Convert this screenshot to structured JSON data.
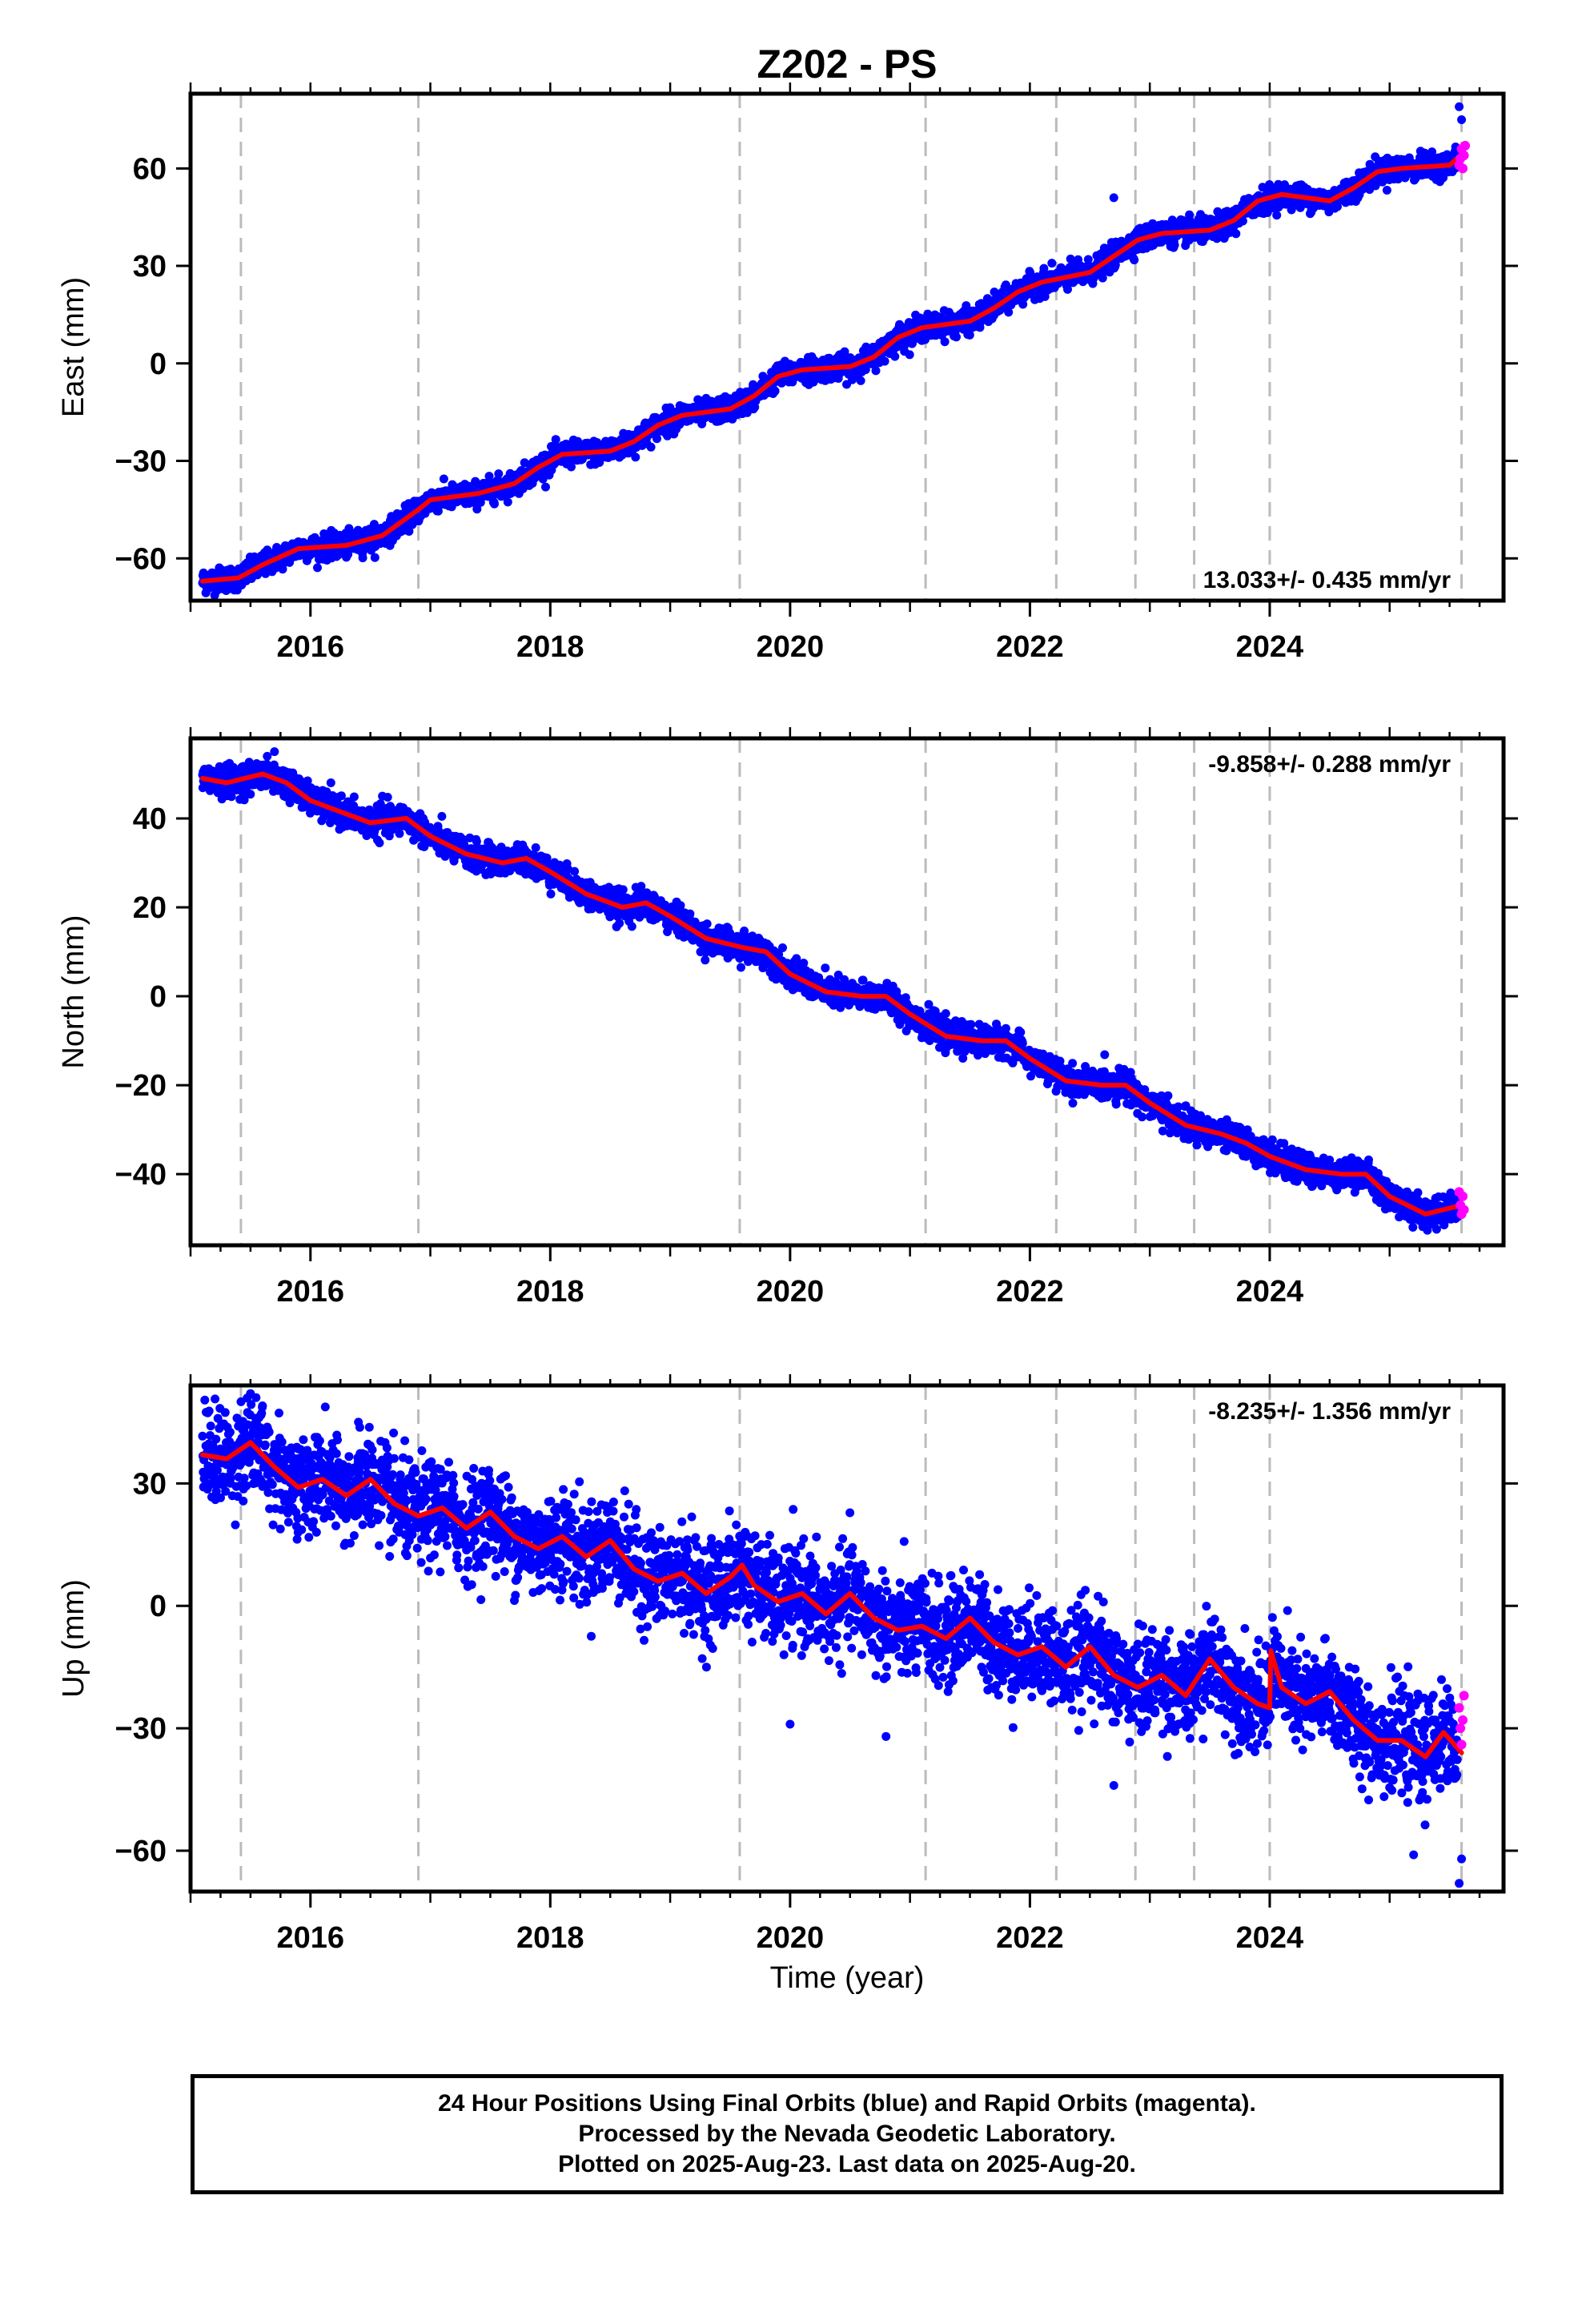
{
  "footer": {
    "line1": "24 Hour Positions Using Final Orbits (blue) and Rapid Orbits (magenta).",
    "line2": "Processed by the Nevada Geodetic Laboratory.",
    "line3": "Plotted on 2025-Aug-23. Last data on 2025-Aug-20."
  },
  "colors": {
    "final": "#0000ff",
    "rapid": "#ff00ff",
    "model": "#ff0000",
    "event_lines": "#bbbbbb"
  },
  "chart_data": [
    {
      "type": "scatter",
      "title": "Z202 - PS",
      "xlabel": "",
      "ylabel": "East (mm)",
      "xlim": [
        2015.0,
        2025.95
      ],
      "ylim": [
        -73,
        83
      ],
      "yticks": [
        -60,
        -30,
        0,
        30,
        60
      ],
      "xticks": [
        2016,
        2018,
        2020,
        2022,
        2024
      ],
      "rate_label": "13.033+/- 0.435 mm/yr",
      "rate_position": "bottom-right",
      "event_lines": [
        2015.42,
        2016.9,
        2019.58,
        2021.13,
        2022.22,
        2022.88,
        2023.37,
        2024.0,
        2025.6
      ],
      "trend": [
        [
          2015.1,
          -67
        ],
        [
          2015.4,
          -66
        ],
        [
          2015.6,
          -62
        ],
        [
          2015.9,
          -57
        ],
        [
          2016.3,
          -56
        ],
        [
          2016.6,
          -53
        ],
        [
          2016.9,
          -45
        ],
        [
          2017.0,
          -42
        ],
        [
          2017.4,
          -40
        ],
        [
          2017.7,
          -37
        ],
        [
          2017.9,
          -32
        ],
        [
          2018.1,
          -28
        ],
        [
          2018.5,
          -27
        ],
        [
          2018.7,
          -24
        ],
        [
          2018.9,
          -19
        ],
        [
          2019.1,
          -16
        ],
        [
          2019.5,
          -14
        ],
        [
          2019.7,
          -10
        ],
        [
          2019.9,
          -4
        ],
        [
          2020.1,
          -2
        ],
        [
          2020.5,
          -1
        ],
        [
          2020.7,
          2
        ],
        [
          2020.9,
          8
        ],
        [
          2021.1,
          11
        ],
        [
          2021.5,
          13
        ],
        [
          2021.7,
          17
        ],
        [
          2021.9,
          22
        ],
        [
          2022.1,
          25
        ],
        [
          2022.5,
          28
        ],
        [
          2022.7,
          33
        ],
        [
          2022.9,
          38
        ],
        [
          2023.1,
          40
        ],
        [
          2023.5,
          41
        ],
        [
          2023.7,
          44
        ],
        [
          2023.9,
          50
        ],
        [
          2024.1,
          52
        ],
        [
          2024.5,
          50
        ],
        [
          2024.7,
          54
        ],
        [
          2024.9,
          59
        ],
        [
          2025.1,
          60
        ],
        [
          2025.5,
          61
        ],
        [
          2025.62,
          65
        ]
      ],
      "scatter_sigma": 1.8,
      "rapid_points": [
        [
          2025.58,
          61
        ],
        [
          2025.59,
          63
        ],
        [
          2025.6,
          66
        ],
        [
          2025.61,
          60
        ],
        [
          2025.62,
          64
        ],
        [
          2025.63,
          67
        ]
      ],
      "outliers": [
        [
          2025.58,
          79
        ],
        [
          2025.6,
          75
        ],
        [
          2022.7,
          51
        ]
      ]
    },
    {
      "type": "scatter",
      "title": "",
      "xlabel": "",
      "ylabel": "North (mm)",
      "xlim": [
        2015.0,
        2025.95
      ],
      "ylim": [
        -56,
        58
      ],
      "yticks": [
        -40,
        -20,
        0,
        20,
        40
      ],
      "xticks": [
        2016,
        2018,
        2020,
        2022,
        2024
      ],
      "rate_label": "-9.858+/- 0.288 mm/yr",
      "rate_position": "top-right",
      "event_lines": [
        2015.42,
        2016.9,
        2019.58,
        2021.13,
        2022.22,
        2022.88,
        2023.37,
        2024.0,
        2025.6
      ],
      "trend": [
        [
          2015.1,
          49
        ],
        [
          2015.3,
          48
        ],
        [
          2015.6,
          50
        ],
        [
          2015.8,
          48
        ],
        [
          2016.0,
          44
        ],
        [
          2016.3,
          41
        ],
        [
          2016.5,
          39
        ],
        [
          2016.8,
          40
        ],
        [
          2017.0,
          36
        ],
        [
          2017.3,
          32
        ],
        [
          2017.6,
          30
        ],
        [
          2017.8,
          31
        ],
        [
          2018.0,
          28
        ],
        [
          2018.3,
          23
        ],
        [
          2018.6,
          20
        ],
        [
          2018.8,
          21
        ],
        [
          2019.0,
          18
        ],
        [
          2019.3,
          13
        ],
        [
          2019.6,
          11
        ],
        [
          2019.8,
          10
        ],
        [
          2020.0,
          5
        ],
        [
          2020.3,
          1
        ],
        [
          2020.6,
          0
        ],
        [
          2020.8,
          0
        ],
        [
          2021.0,
          -4
        ],
        [
          2021.3,
          -9
        ],
        [
          2021.6,
          -10
        ],
        [
          2021.8,
          -10
        ],
        [
          2022.0,
          -14
        ],
        [
          2022.3,
          -19
        ],
        [
          2022.6,
          -20
        ],
        [
          2022.8,
          -20
        ],
        [
          2023.0,
          -24
        ],
        [
          2023.3,
          -29
        ],
        [
          2023.6,
          -31
        ],
        [
          2023.8,
          -33
        ],
        [
          2024.0,
          -36
        ],
        [
          2024.3,
          -39
        ],
        [
          2024.6,
          -40
        ],
        [
          2024.8,
          -40
        ],
        [
          2025.0,
          -45
        ],
        [
          2025.3,
          -49
        ],
        [
          2025.6,
          -47
        ]
      ],
      "scatter_sigma": 1.6,
      "rapid_points": [
        [
          2025.58,
          -44
        ],
        [
          2025.59,
          -47
        ],
        [
          2025.6,
          -49
        ],
        [
          2025.61,
          -45
        ],
        [
          2025.62,
          -48
        ]
      ],
      "outliers": [
        [
          2015.3,
          52
        ],
        [
          2015.7,
          55
        ],
        [
          2016.6,
          45
        ]
      ]
    },
    {
      "type": "scatter",
      "title": "",
      "xlabel": "Time (year)",
      "ylabel": "Up (mm)",
      "xlim": [
        2015.0,
        2025.95
      ],
      "ylim": [
        -70,
        54
      ],
      "yticks": [
        -60,
        -30,
        0,
        30
      ],
      "xticks": [
        2016,
        2018,
        2020,
        2022,
        2024
      ],
      "rate_label": "-8.235+/- 1.356 mm/yr",
      "rate_position": "top-right",
      "event_lines": [
        2015.42,
        2016.9,
        2019.58,
        2021.13,
        2022.22,
        2022.88,
        2023.37,
        2024.0,
        2025.6
      ],
      "trend": [
        [
          2015.1,
          37
        ],
        [
          2015.3,
          36
        ],
        [
          2015.5,
          40
        ],
        [
          2015.7,
          34
        ],
        [
          2015.9,
          29
        ],
        [
          2016.1,
          31
        ],
        [
          2016.3,
          27
        ],
        [
          2016.5,
          31
        ],
        [
          2016.7,
          25
        ],
        [
          2016.9,
          22
        ],
        [
          2017.1,
          24
        ],
        [
          2017.3,
          19
        ],
        [
          2017.5,
          23
        ],
        [
          2017.7,
          17
        ],
        [
          2017.9,
          14
        ],
        [
          2018.1,
          17
        ],
        [
          2018.3,
          12
        ],
        [
          2018.5,
          16
        ],
        [
          2018.7,
          9
        ],
        [
          2018.9,
          6
        ],
        [
          2019.1,
          8
        ],
        [
          2019.3,
          3
        ],
        [
          2019.5,
          7
        ],
        [
          2019.6,
          10
        ],
        [
          2019.7,
          5
        ],
        [
          2019.9,
          1
        ],
        [
          2020.1,
          3
        ],
        [
          2020.3,
          -2
        ],
        [
          2020.5,
          3
        ],
        [
          2020.7,
          -3
        ],
        [
          2020.9,
          -6
        ],
        [
          2021.1,
          -5
        ],
        [
          2021.3,
          -8
        ],
        [
          2021.5,
          -3
        ],
        [
          2021.7,
          -9
        ],
        [
          2021.9,
          -12
        ],
        [
          2022.1,
          -10
        ],
        [
          2022.3,
          -15
        ],
        [
          2022.5,
          -10
        ],
        [
          2022.7,
          -17
        ],
        [
          2022.9,
          -20
        ],
        [
          2023.1,
          -17
        ],
        [
          2023.3,
          -22
        ],
        [
          2023.5,
          -13
        ],
        [
          2023.7,
          -20
        ],
        [
          2023.9,
          -24
        ],
        [
          2024.0,
          -25
        ],
        [
          2024.01,
          -11
        ],
        [
          2024.1,
          -20
        ],
        [
          2024.3,
          -24
        ],
        [
          2024.5,
          -21
        ],
        [
          2024.7,
          -28
        ],
        [
          2024.9,
          -33
        ],
        [
          2025.1,
          -33
        ],
        [
          2025.3,
          -37
        ],
        [
          2025.45,
          -31
        ],
        [
          2025.6,
          -36
        ]
      ],
      "scatter_sigma": 6.0,
      "rapid_points": [
        [
          2025.58,
          -25
        ],
        [
          2025.59,
          -30
        ],
        [
          2025.6,
          -34
        ],
        [
          2025.61,
          -28
        ],
        [
          2025.62,
          -22
        ]
      ],
      "outliers": [
        [
          2015.5,
          52
        ],
        [
          2015.6,
          49
        ],
        [
          2016.4,
          45
        ],
        [
          2020.0,
          -29
        ],
        [
          2020.8,
          -32
        ],
        [
          2022.7,
          -44
        ],
        [
          2025.2,
          -61
        ],
        [
          2025.58,
          -68
        ],
        [
          2025.6,
          -62
        ]
      ]
    }
  ]
}
